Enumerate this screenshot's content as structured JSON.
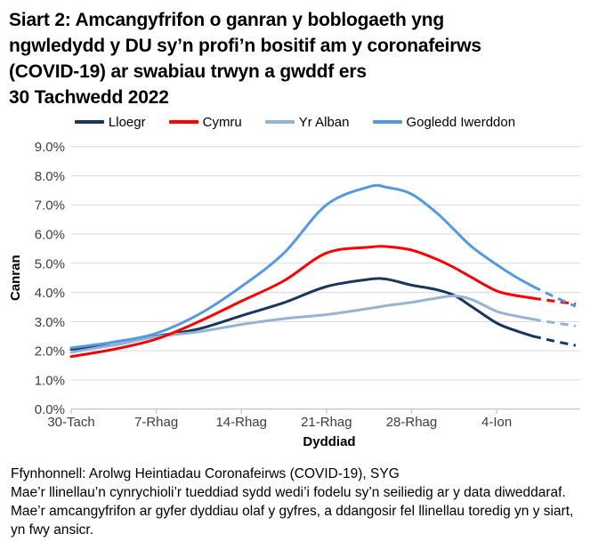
{
  "title_lines": [
    "Siart 2: Amcangyfrifon o ganran y boblogaeth yng",
    "ngwledydd y DU sy’n profi’n bositif am y coronafeirws",
    "(COVID-19) ar swabiau trwyn a gwddf ers",
    "30 Tachwedd 2022"
  ],
  "chart_data": {
    "type": "line",
    "title": "Siart 2: Amcangyfrifon o ganran y boblogaeth yng ngwledydd y DU sy’n profi’n bositif am y coronafeirws (COVID-19) ar swabiau trwyn a gwddf ers 30 Tachwedd 2022",
    "xlabel": "Dyddiad",
    "ylabel": "Canran",
    "ylim": [
      0,
      9
    ],
    "grid": "horizontal",
    "legend_position": "top",
    "x_unit": "days since 30 Tachwedd 2022",
    "x_tick_days": [
      0,
      7,
      14,
      21,
      28,
      35
    ],
    "x_tick_labels": [
      "30-Tach",
      "7-Rhag",
      "14-Rhag",
      "21-Rhag",
      "28-Rhag",
      "4-Ion"
    ],
    "y_ticks": [
      {
        "value": 0,
        "label": "0.0%"
      },
      {
        "value": 1,
        "label": "1.0%"
      },
      {
        "value": 2,
        "label": "2.0%"
      },
      {
        "value": 3,
        "label": "3.0%"
      },
      {
        "value": 4,
        "label": "4.0%"
      },
      {
        "value": 5,
        "label": "5.0%"
      },
      {
        "value": 6,
        "label": "6.0%"
      },
      {
        "value": 7,
        "label": "7.0%"
      },
      {
        "value": 8,
        "label": "8.0%"
      },
      {
        "value": 9,
        "label": "9.0%"
      },
      {
        "value": 0,
        "label": "0.0%"
      }
    ],
    "dashed_from_day": 38,
    "x_max_day": 41.5,
    "sample_days": [
      0,
      3.5,
      7,
      10.5,
      14,
      17.5,
      21,
      24.5,
      26,
      28,
      30,
      31.5,
      33,
      35,
      36.5,
      38,
      39.75,
      41.5
    ],
    "series": [
      {
        "name": "Lloegr",
        "color": "#17375e",
        "values": [
          2.05,
          2.2,
          2.5,
          2.75,
          3.2,
          3.65,
          4.2,
          4.45,
          4.45,
          4.25,
          4.1,
          3.9,
          3.5,
          2.95,
          2.7,
          2.5,
          2.33,
          2.18
        ]
      },
      {
        "name": "Yr Alban",
        "color": "#95b3d7",
        "values": [
          1.95,
          2.2,
          2.48,
          2.65,
          2.9,
          3.1,
          3.24,
          3.45,
          3.55,
          3.66,
          3.8,
          3.88,
          3.75,
          3.35,
          3.2,
          3.08,
          2.96,
          2.85
        ]
      },
      {
        "name": "Cymru",
        "color": "#fe0000",
        "values": [
          1.8,
          2.05,
          2.4,
          3.0,
          3.7,
          4.4,
          5.35,
          5.55,
          5.57,
          5.45,
          5.15,
          4.85,
          4.5,
          4.05,
          3.9,
          3.8,
          3.7,
          3.6
        ]
      },
      {
        "name": "Gogledd Iwerddon",
        "color": "#549ae0",
        "values": [
          2.1,
          2.3,
          2.6,
          3.25,
          4.2,
          5.35,
          7.0,
          7.62,
          7.6,
          7.37,
          6.75,
          6.15,
          5.55,
          4.95,
          4.55,
          4.2,
          3.85,
          3.52
        ]
      }
    ],
    "legend_order": [
      "Lloegr",
      "Cymru",
      "Yr Alban",
      "Gogledd Iwerddon"
    ],
    "note": "Dashed line segments show the less certain modelled estimates for the final days of each series"
  },
  "footer": {
    "source": "Ffynhonnell: Arolwg Heintiadau Coronafeirws (COVID-19), SYG",
    "note1": "Mae’r llinellau’n cynrychioli’r tueddiad sydd wedi’i fodelu sy’n seiliedig ar y data diweddaraf.",
    "note2": "Mae’r amcangyfrifon ar gyfer dyddiau olaf y gyfres, a ddangosir fel llinellau toredig yn y siart, yn fwy ansicr."
  }
}
